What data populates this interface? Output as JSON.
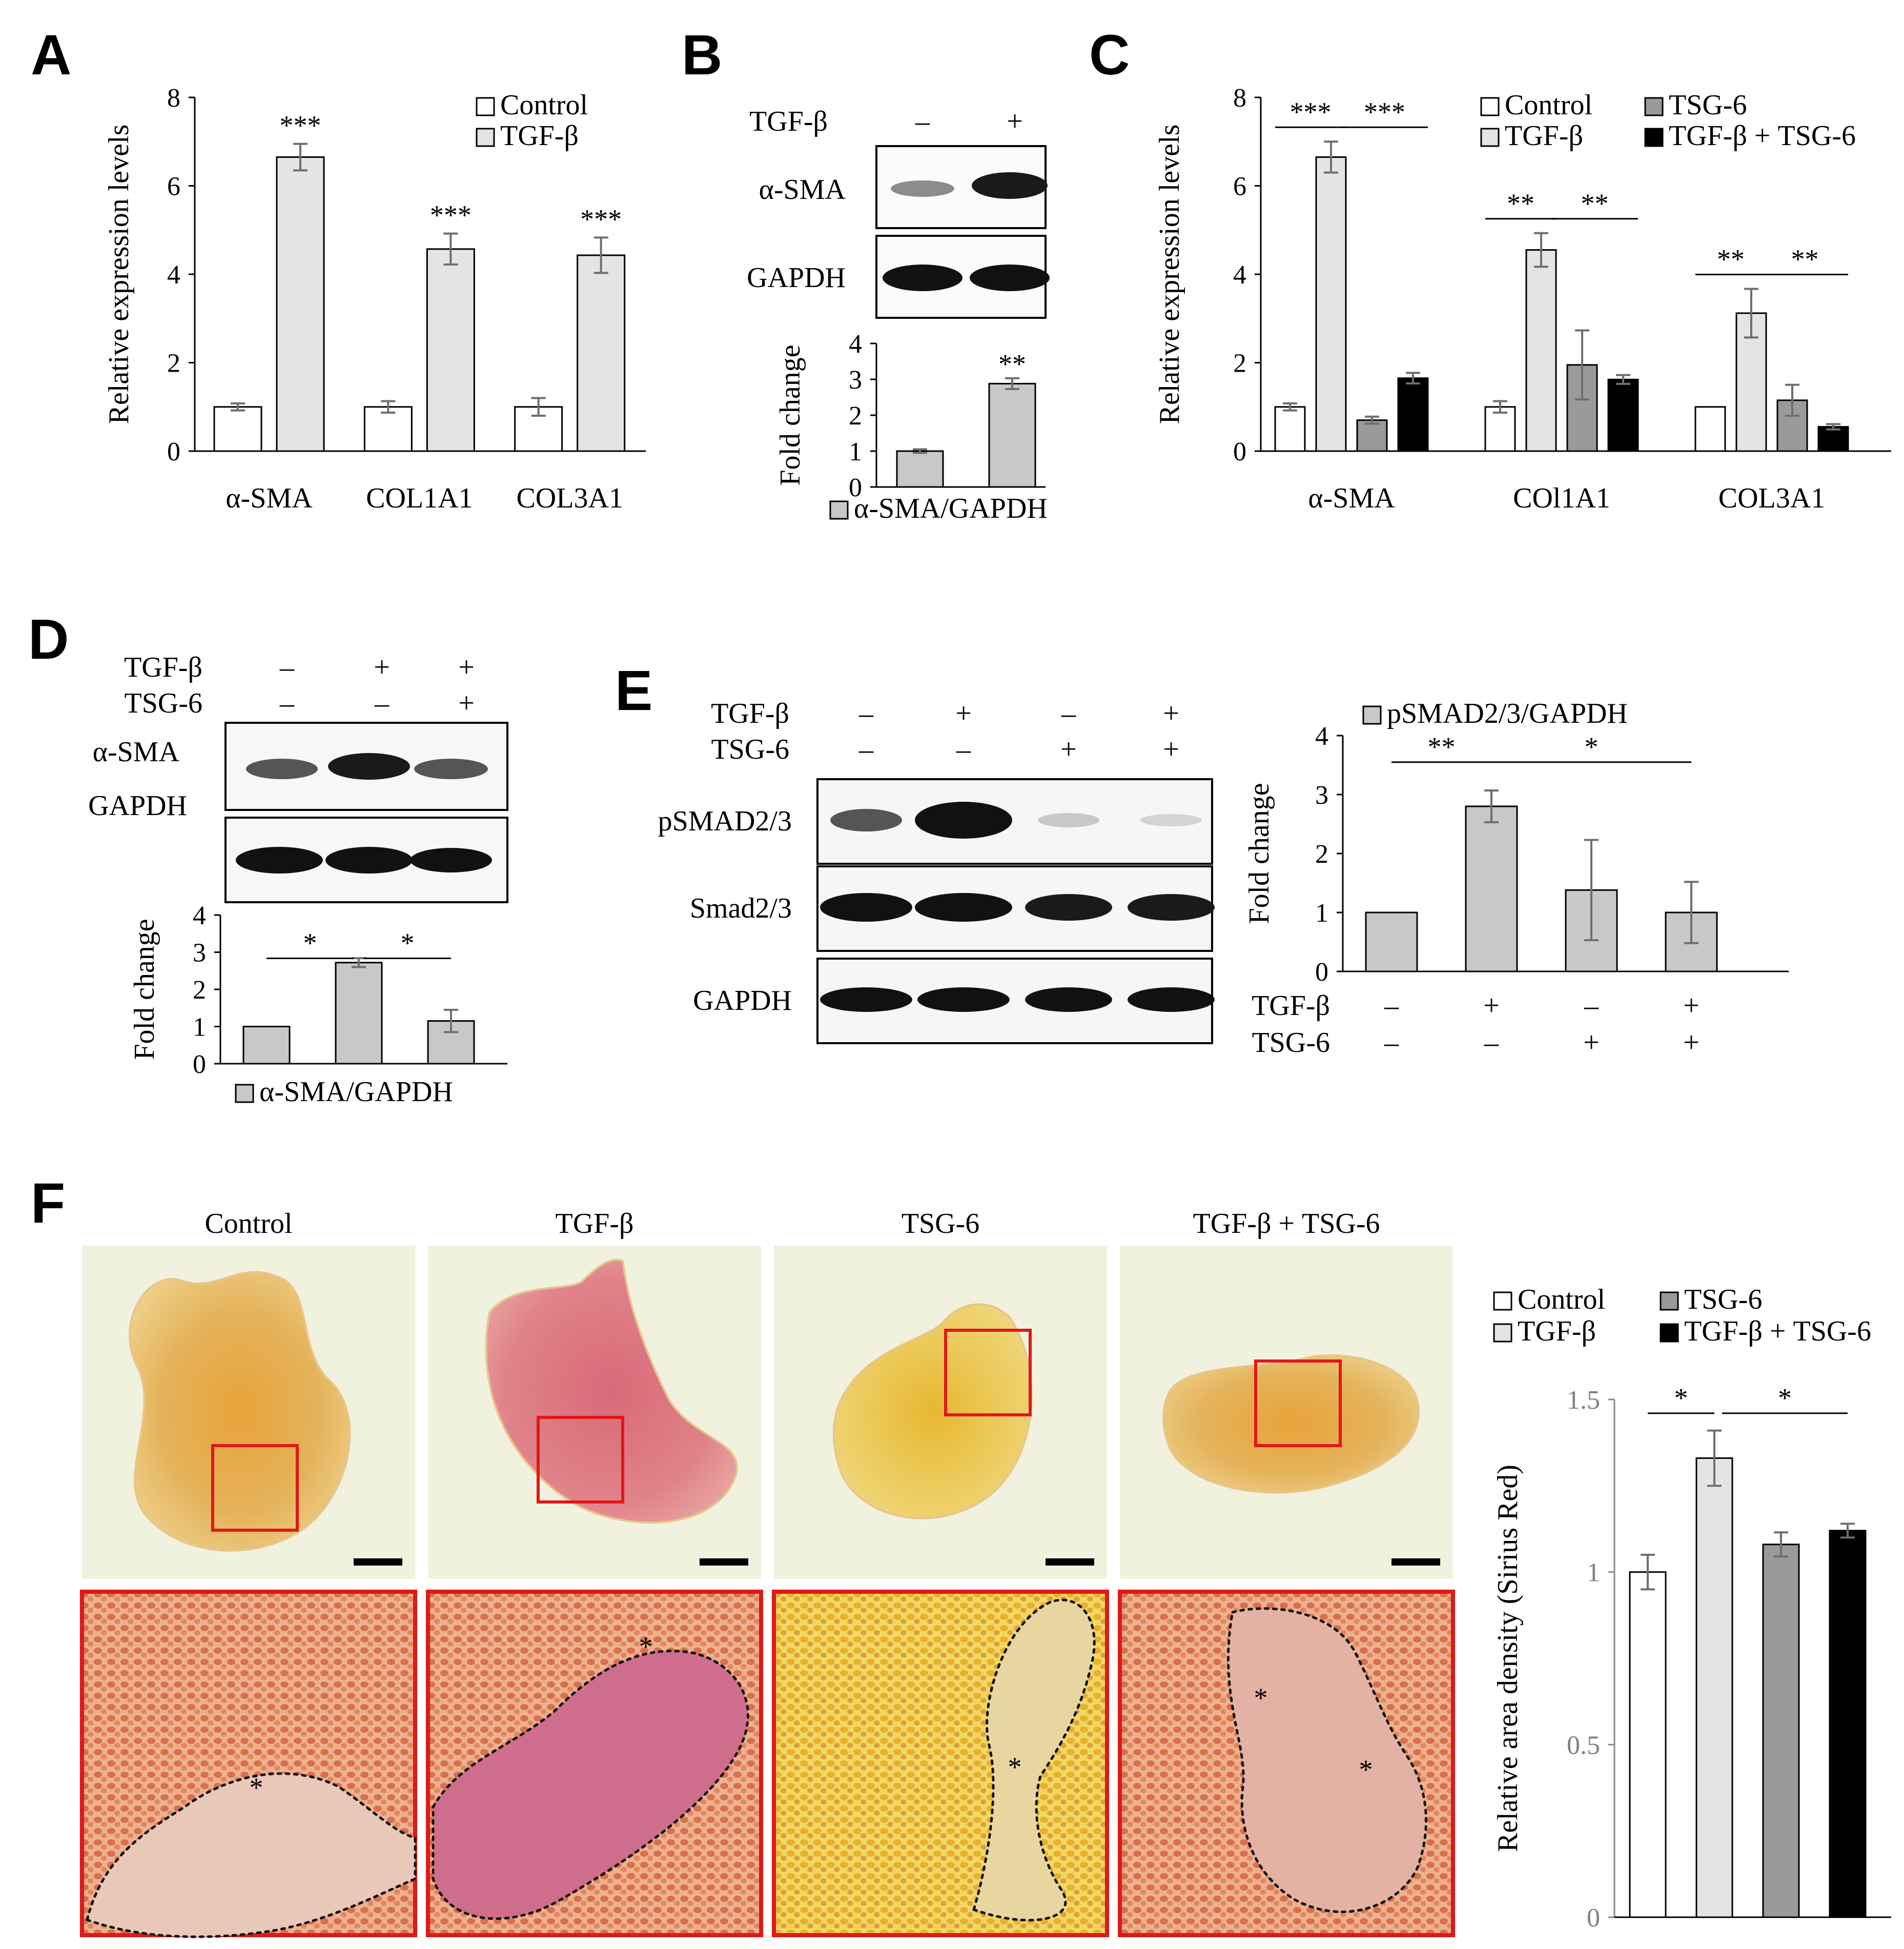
{
  "panel_labels": [
    "A",
    "B",
    "C",
    "D",
    "E",
    "F"
  ],
  "colors": {
    "control": "#ffffff",
    "tgf": "#e4e4e4",
    "tsg6": "#9a9a9a",
    "combo": "#000000",
    "single": "#c8c8c8",
    "roi": "#e01818"
  },
  "panelB": {
    "row": {
      "label": "TGF-β",
      "signs": [
        "–",
        "+"
      ]
    },
    "blots": [
      "α-SMA",
      "GAPDH"
    ]
  },
  "panelD": {
    "rows": [
      {
        "label": "TGF-β",
        "signs": [
          "–",
          "+",
          "+"
        ]
      },
      {
        "label": "TSG-6",
        "signs": [
          "–",
          "–",
          "+"
        ]
      }
    ],
    "blots": [
      "α-SMA",
      "GAPDH"
    ]
  },
  "panelE": {
    "rows": [
      {
        "label": "TGF-β",
        "signs": [
          "–",
          "+",
          "–",
          "+"
        ]
      },
      {
        "label": "TSG-6",
        "signs": [
          "–",
          "–",
          "+",
          "+"
        ]
      }
    ],
    "blots": [
      "pSMAD2/3",
      "Smad2/3",
      "GAPDH"
    ]
  },
  "panelF": {
    "images": [
      "Control",
      "TGF-β",
      "TSG-6",
      "TGF-β + TSG-6"
    ],
    "scale_bar": "scale-bar-icon",
    "collagen_marker": "*"
  },
  "chart_data": [
    {
      "panel": "A",
      "type": "bar",
      "categories": [
        "α-SMA",
        "COL1A1",
        "COL3A1"
      ],
      "series": [
        {
          "name": "Control",
          "values": [
            1.0,
            1.0,
            1.0
          ],
          "errors": [
            0.08,
            0.13,
            0.2
          ]
        },
        {
          "name": "TGF-β",
          "values": [
            6.65,
            4.57,
            4.43
          ],
          "errors": [
            0.3,
            0.35,
            0.4
          ]
        }
      ],
      "annotations": [
        "***",
        "***",
        "***"
      ],
      "ylabel": "Relative expression levels",
      "yticks": [
        "0",
        "2",
        "4",
        "6",
        "8"
      ],
      "ylim": [
        0,
        8
      ],
      "legend": "top-right"
    },
    {
      "panel": "B",
      "type": "bar",
      "categories": [
        "–",
        "+"
      ],
      "series": [
        {
          "name": "α-SMA/GAPDH",
          "values": [
            1.0,
            2.88
          ],
          "errors": [
            0.05,
            0.15
          ]
        }
      ],
      "annotations": [
        "",
        "**"
      ],
      "ylabel": "Fold change",
      "yticks": [
        "0",
        "1",
        "2",
        "3",
        "4"
      ],
      "ylim": [
        0,
        4
      ],
      "legend": "bottom"
    },
    {
      "panel": "C",
      "type": "bar",
      "categories": [
        "α-SMA",
        "COl1A1",
        "COL3A1"
      ],
      "series": [
        {
          "name": "Control",
          "values": [
            1.0,
            1.0,
            1.0
          ],
          "errors": [
            0.08,
            0.13,
            0.0
          ]
        },
        {
          "name": "TGF-β",
          "values": [
            6.65,
            4.55,
            3.12
          ],
          "errors": [
            0.35,
            0.38,
            0.55
          ]
        },
        {
          "name": "TSG-6",
          "values": [
            0.7,
            1.95,
            1.15
          ],
          "errors": [
            0.08,
            0.78,
            0.35
          ]
        },
        {
          "name": "TGF-β + TSG-6",
          "values": [
            1.65,
            1.62,
            0.55
          ],
          "errors": [
            0.12,
            0.1,
            0.06
          ]
        }
      ],
      "brackets": [
        {
          "group": 0,
          "pairs": [
            [
              "Control",
              "TGF-β",
              "***"
            ],
            [
              "TGF-β",
              "TGF-β + TSG-6",
              "***"
            ]
          ]
        },
        {
          "group": 1,
          "pairs": [
            [
              "Control",
              "TGF-β",
              "**"
            ],
            [
              "TGF-β",
              "TGF-β + TSG-6",
              "**"
            ]
          ]
        },
        {
          "group": 2,
          "pairs": [
            [
              "Control",
              "TGF-β",
              "**"
            ],
            [
              "TGF-β",
              "TGF-β + TSG-6",
              "**"
            ]
          ]
        }
      ],
      "ylabel": "Relative expression levels",
      "yticks": [
        "0",
        "2",
        "4",
        "6",
        "8"
      ],
      "ylim": [
        0,
        8
      ],
      "legend": "top-right"
    },
    {
      "panel": "D",
      "type": "bar",
      "categories": [
        "–/–",
        "+/–",
        "+/+"
      ],
      "series": [
        {
          "name": "α-SMA/GAPDH",
          "values": [
            1.0,
            2.72,
            1.15
          ],
          "errors": [
            0.0,
            0.12,
            0.3
          ]
        }
      ],
      "brackets": [
        [
          "1",
          "2",
          "*"
        ],
        [
          "2",
          "3",
          "*"
        ]
      ],
      "ylabel": "Fold change",
      "yticks": [
        "0",
        "1",
        "2",
        "3",
        "4"
      ],
      "ylim": [
        0,
        4
      ],
      "legend": "bottom"
    },
    {
      "panel": "E",
      "type": "bar",
      "categories": [
        "–/–",
        "+/–",
        "–/+",
        "+/+"
      ],
      "series": [
        {
          "name": "pSMAD2/3/GAPDH",
          "values": [
            1.0,
            2.8,
            1.38,
            1.0
          ],
          "errors": [
            0.0,
            0.27,
            0.85,
            0.52
          ]
        }
      ],
      "brackets": [
        [
          "1",
          "2",
          "**"
        ],
        [
          "2",
          "4",
          "*"
        ]
      ],
      "ylabel": "Fold change",
      "yticks": [
        "0",
        "1",
        "2",
        "3",
        "4"
      ],
      "ylim": [
        0,
        4
      ],
      "legend": "top",
      "rows": [
        {
          "label": "TGF-β",
          "signs": [
            "–",
            "+",
            "–",
            "+"
          ]
        },
        {
          "label": "TSG-6",
          "signs": [
            "–",
            "–",
            "+",
            "+"
          ]
        }
      ]
    },
    {
      "panel": "F",
      "type": "bar",
      "categories": [
        "Control",
        "TGF-β",
        "TSG-6",
        "TGF-β + TSG-6"
      ],
      "values": [
        1.0,
        1.33,
        1.08,
        1.12
      ],
      "errors": [
        0.05,
        0.08,
        0.035,
        0.02
      ],
      "brackets": [
        [
          "Control",
          "TGF-β",
          "*"
        ],
        [
          "TGF-β",
          "TGF-β + TSG-6",
          "*"
        ]
      ],
      "ylabel": "Relative area density (Sirius Red)",
      "yticks": [
        "0",
        "0.5",
        "1",
        "1.5"
      ],
      "ylim": [
        0,
        1.5
      ],
      "legend": "top"
    }
  ]
}
